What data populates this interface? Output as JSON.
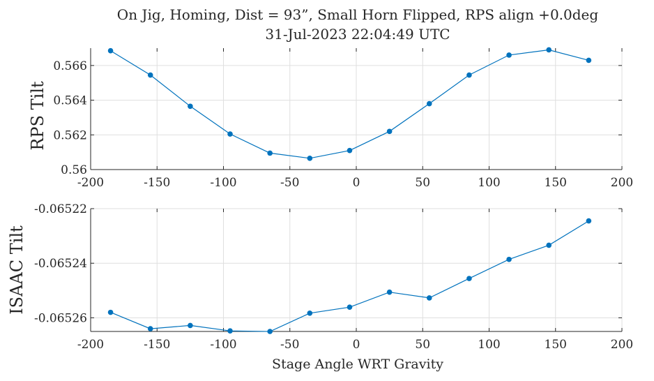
{
  "title_line1": "On Jig, Homing, Dist = 93”, Small Horn Flipped, RPS align +0.0deg",
  "title_line2": "31-Jul-2023 22:04:49 UTC",
  "xlabel": "Stage Angle WRT Gravity",
  "colors": {
    "line": "#0072BD",
    "axis": "#262626",
    "grid": "#dfdfdf"
  },
  "chart_data": [
    {
      "type": "line",
      "ylabel": "RPS Tilt",
      "xlim": [
        -200,
        200
      ],
      "ylim": [
        0.56,
        0.567
      ],
      "xticks": [
        -200,
        -150,
        -100,
        -50,
        0,
        50,
        100,
        150,
        200
      ],
      "xtick_labels": [
        "-200",
        "-150",
        "-100",
        "-50",
        "0",
        "50",
        "100",
        "150",
        "200"
      ],
      "yticks": [
        0.56,
        0.562,
        0.564,
        0.566
      ],
      "ytick_labels": [
        "0.56",
        "0.562",
        "0.564",
        "0.566"
      ],
      "grid": true,
      "x": [
        -185,
        -155,
        -125,
        -95,
        -65,
        -35,
        -5,
        25,
        55,
        85,
        115,
        145,
        175
      ],
      "y": [
        0.56685,
        0.56545,
        0.56365,
        0.56205,
        0.56095,
        0.56065,
        0.5611,
        0.5622,
        0.5638,
        0.56545,
        0.5666,
        0.5669,
        0.5663
      ]
    },
    {
      "type": "line",
      "ylabel": "ISAAC Tilt",
      "xlabel": "Stage Angle WRT Gravity",
      "xlim": [
        -200,
        200
      ],
      "ylim": [
        -0.065265,
        -0.06522
      ],
      "xticks": [
        -200,
        -150,
        -100,
        -50,
        0,
        50,
        100,
        150,
        200
      ],
      "xtick_labels": [
        "-200",
        "-150",
        "-100",
        "-50",
        "0",
        "50",
        "100",
        "150",
        "200"
      ],
      "yticks": [
        -0.06526,
        -0.06524,
        -0.06522
      ],
      "ytick_labels": [
        "-0.06526",
        "-0.06524",
        "-0.06522"
      ],
      "grid": true,
      "x": [
        -185,
        -155,
        -125,
        -95,
        -65,
        -35,
        -5,
        25,
        55,
        85,
        115,
        145,
        175
      ],
      "y": [
        -0.065258,
        -0.065264,
        -0.0652628,
        -0.0652648,
        -0.065265,
        -0.0652583,
        -0.0652561,
        -0.0652506,
        -0.0652527,
        -0.0652456,
        -0.0652386,
        -0.0652334,
        -0.0652245
      ]
    }
  ]
}
